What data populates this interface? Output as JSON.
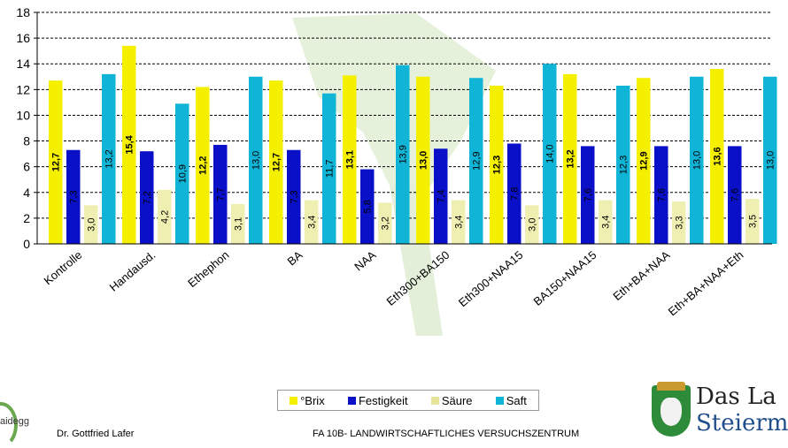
{
  "chart_data": {
    "type": "bar",
    "categories": [
      "Kontrolle",
      "Handausd.",
      "Ethephon",
      "BA",
      "NAA",
      "Eth300+BA150",
      "Eth300+NAA15",
      "BA150+NAA15",
      "Eth+BA+NAA",
      "Eth+BA+NAA+Eth"
    ],
    "series": [
      {
        "name": "°Brix",
        "color": "#f5f000",
        "values": [
          12.7,
          15.4,
          12.2,
          12.7,
          13.1,
          13.0,
          12.3,
          13.2,
          12.9,
          13.6
        ],
        "labels": [
          "12,7",
          "15,4",
          "12,2",
          "12,7",
          "13,1",
          "13,0",
          "12,3",
          "13,2",
          "12,9",
          "13,6"
        ]
      },
      {
        "name": "Festigkeit",
        "color": "#0a10c8",
        "values": [
          7.3,
          7.2,
          7.7,
          7.3,
          5.8,
          7.4,
          7.8,
          7.6,
          7.6,
          7.6
        ],
        "labels": [
          "7,3",
          "7,2",
          "7,7",
          "7,3",
          "5,8",
          "7,4",
          "7,8",
          "7,6",
          "7,6",
          "7,6"
        ]
      },
      {
        "name": "Säure",
        "color": "#f0efb2",
        "values": [
          3.0,
          4.2,
          3.1,
          3.4,
          3.2,
          3.4,
          3.0,
          3.4,
          3.3,
          3.5
        ],
        "labels": [
          "3,0",
          "4,2",
          "3,1",
          "3,4",
          "3,2",
          "3,4",
          "3,0",
          "3,4",
          "3,3",
          "3,5"
        ]
      },
      {
        "name": "Saft",
        "color": "#10b4d6",
        "values": [
          13.2,
          10.9,
          13.0,
          11.7,
          13.9,
          12.9,
          14.0,
          12.3,
          13.0,
          13.0
        ],
        "labels": [
          "13,2",
          "10,9",
          "13,0",
          "11,7",
          "13,9",
          "12,9",
          "14,0",
          "12,3",
          "13,0",
          "13,0"
        ]
      }
    ],
    "ylim": [
      0,
      18
    ],
    "yticks": [
      0,
      2,
      4,
      6,
      8,
      10,
      12,
      14,
      16,
      18
    ],
    "grid": true,
    "legend": "bottom",
    "title": "",
    "xlabel": "",
    "ylabel": ""
  },
  "footer": {
    "author": "Dr. Gottfried Lafer",
    "center": "FA 10B- LANDWIRTSCHAFTLICHES VERSUCHSZENTRUM",
    "logo_left": "aidegg",
    "logo_right_line1": "Das La",
    "logo_right_line2": "Steierm"
  }
}
